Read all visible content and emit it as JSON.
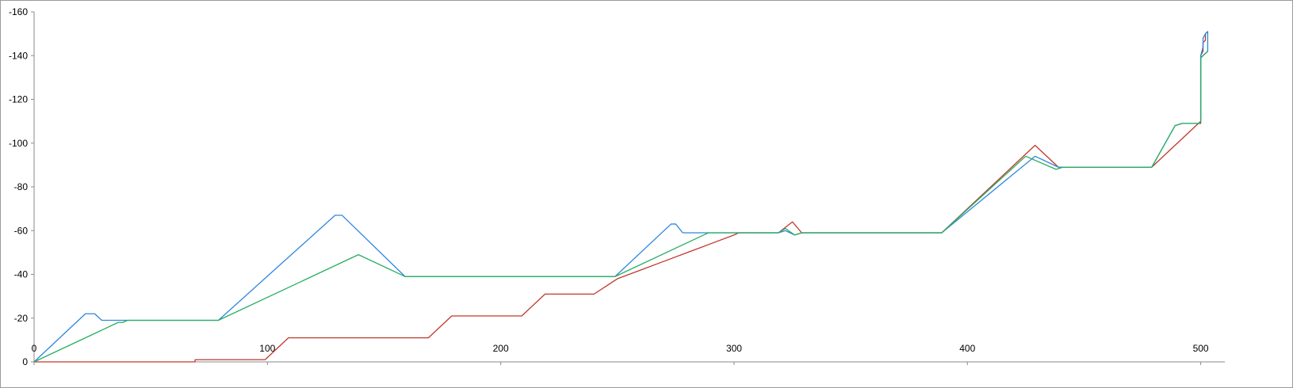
{
  "chart_data": {
    "type": "line",
    "title": "",
    "xlabel": "",
    "ylabel": "",
    "xlim": [
      0,
      510
    ],
    "ylim": [
      0,
      -160
    ],
    "y_inverted": true,
    "x_ticks": [
      0,
      100,
      200,
      300,
      400,
      500
    ],
    "x_tick_labels": [
      "0",
      "100",
      "200",
      "300",
      "400",
      "500"
    ],
    "y_ticks": [
      0,
      -20,
      -40,
      -60,
      -80,
      -100,
      -120,
      -140,
      -160
    ],
    "y_tick_labels": [
      "0",
      "-20",
      "-40",
      "-60",
      "-80",
      "-100",
      "-120",
      "-140",
      "-160"
    ],
    "grid": false,
    "legend": "none",
    "series": [
      {
        "color": "#c0392b",
        "points": [
          [
            0,
            0
          ],
          [
            69,
            0
          ],
          [
            69,
            -1
          ],
          [
            99,
            -1
          ],
          [
            109,
            -11
          ],
          [
            169,
            -11
          ],
          [
            179,
            -21
          ],
          [
            209,
            -21
          ],
          [
            219,
            -31
          ],
          [
            240,
            -31
          ],
          [
            250,
            -38
          ],
          [
            260,
            -42
          ],
          [
            270,
            -46
          ],
          [
            280,
            -50
          ],
          [
            290,
            -54
          ],
          [
            300,
            -58
          ],
          [
            302,
            -59
          ],
          [
            319,
            -59
          ],
          [
            325,
            -64
          ],
          [
            329,
            -59
          ],
          [
            389,
            -59
          ],
          [
            429,
            -99
          ],
          [
            439,
            -89
          ],
          [
            479,
            -89
          ],
          [
            499,
            -109
          ],
          [
            500,
            -109
          ],
          [
            500,
            -140
          ],
          [
            501,
            -142
          ],
          [
            501,
            -146
          ],
          [
            502,
            -147
          ],
          [
            502,
            -150
          ],
          [
            503,
            -151
          ]
        ]
      },
      {
        "color": "#2e86de",
        "points": [
          [
            0,
            0
          ],
          [
            22,
            -22
          ],
          [
            26,
            -22
          ],
          [
            29,
            -19
          ],
          [
            79,
            -19
          ],
          [
            129,
            -67
          ],
          [
            132,
            -67
          ],
          [
            159,
            -39
          ],
          [
            249,
            -39
          ],
          [
            273,
            -63
          ],
          [
            275,
            -63
          ],
          [
            278,
            -59
          ],
          [
            290,
            -59
          ],
          [
            319,
            -59
          ],
          [
            322,
            -60
          ],
          [
            326,
            -58
          ],
          [
            329,
            -59
          ],
          [
            389,
            -59
          ],
          [
            429,
            -94
          ],
          [
            439,
            -89
          ],
          [
            479,
            -89
          ],
          [
            489,
            -108
          ],
          [
            492,
            -109
          ],
          [
            499,
            -109
          ],
          [
            500,
            -110
          ],
          [
            500,
            -140
          ],
          [
            501,
            -144
          ],
          [
            501,
            -148
          ],
          [
            502,
            -150
          ],
          [
            503,
            -151
          ],
          [
            503,
            -142
          ],
          [
            500,
            -139
          ]
        ]
      },
      {
        "color": "#27ae60",
        "points": [
          [
            0,
            0
          ],
          [
            36,
            -18
          ],
          [
            38,
            -18
          ],
          [
            40,
            -19
          ],
          [
            79,
            -19
          ],
          [
            139,
            -49
          ],
          [
            159,
            -39
          ],
          [
            249,
            -39
          ],
          [
            289,
            -59
          ],
          [
            319,
            -59
          ],
          [
            322,
            -61
          ],
          [
            326,
            -58
          ],
          [
            329,
            -59
          ],
          [
            389,
            -59
          ],
          [
            425,
            -94
          ],
          [
            438,
            -88
          ],
          [
            441,
            -89
          ],
          [
            479,
            -89
          ],
          [
            489,
            -108
          ],
          [
            492,
            -109
          ],
          [
            499,
            -109
          ],
          [
            500,
            -110
          ],
          [
            500,
            -139
          ],
          [
            503,
            -142
          ]
        ]
      }
    ]
  }
}
